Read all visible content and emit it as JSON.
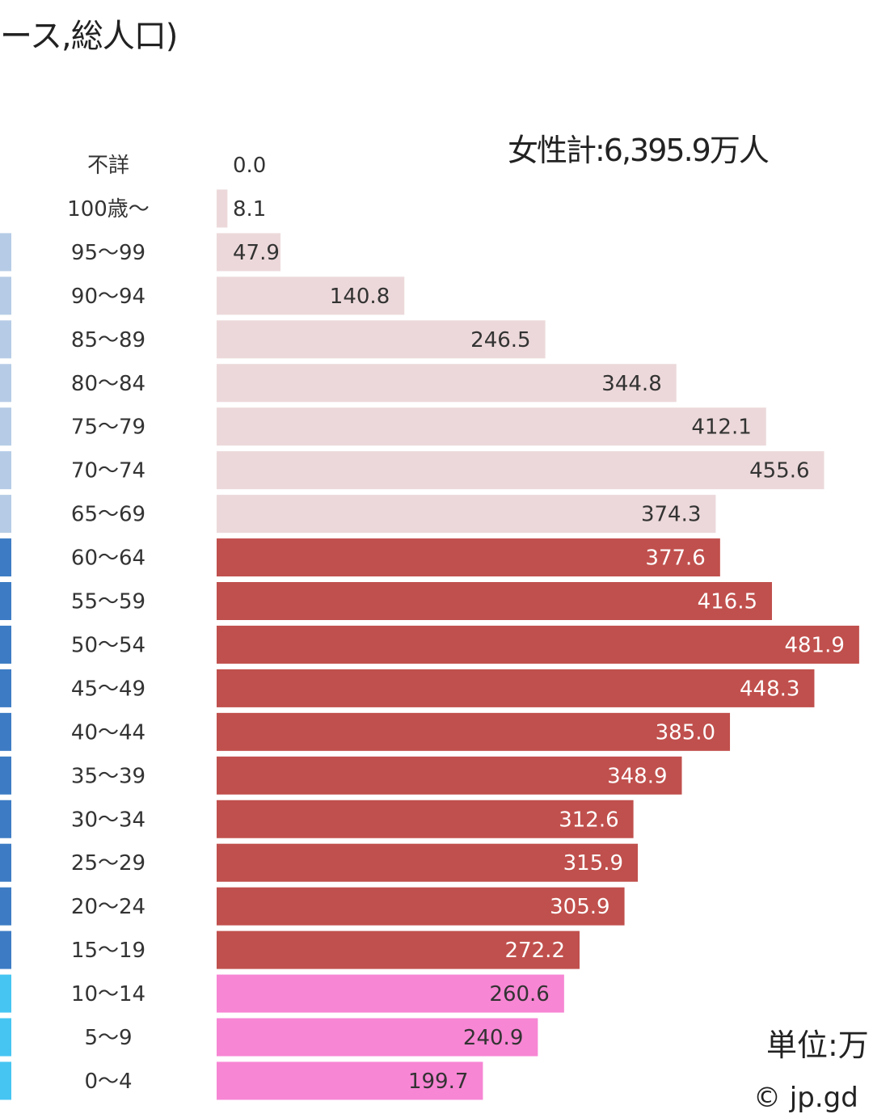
{
  "page": {
    "title_fragment": "ース,総人口)",
    "female_total": "女性計:6,395.9万人",
    "unit_fragment": "単位:万",
    "copyright_fragment": "© jp.gd"
  },
  "colors": {
    "young": "#f786d4",
    "working": "#c0504d",
    "elderly": "#ecd8da",
    "male_young": "#46c5f2",
    "male_working": "#3d7cc4",
    "male_elderly": "#b6cce6"
  },
  "chart_data": {
    "type": "bar",
    "orientation": "horizontal",
    "categories": [
      "不詳",
      "100歳～",
      "95～99",
      "90～94",
      "85～89",
      "80～84",
      "75～79",
      "70～74",
      "65～69",
      "60～64",
      "55～59",
      "50～54",
      "45～49",
      "40～44",
      "35～39",
      "30～34",
      "25～29",
      "20～24",
      "15～19",
      "10～14",
      "5～9",
      "0～4"
    ],
    "value_labels": [
      "0.0",
      "8.1",
      "47.9",
      "140.8",
      "246.5",
      "344.8",
      "412.1",
      "455.6",
      "374.3",
      "377.6",
      "416.5",
      "481.9",
      "448.3",
      "385.0",
      "348.9",
      "312.6",
      "315.9",
      "305.9",
      "272.2",
      "260.6",
      "240.9",
      "199.7"
    ],
    "values": [
      0.0,
      8.1,
      47.9,
      140.8,
      246.5,
      344.8,
      412.1,
      455.6,
      374.3,
      377.6,
      416.5,
      481.9,
      448.3,
      385.0,
      348.9,
      312.6,
      315.9,
      305.9,
      272.2,
      260.6,
      240.9,
      199.7
    ],
    "groups": [
      "elderly",
      "elderly",
      "elderly",
      "elderly",
      "elderly",
      "elderly",
      "elderly",
      "elderly",
      "elderly",
      "working",
      "working",
      "working",
      "working",
      "working",
      "working",
      "working",
      "working",
      "working",
      "working",
      "young",
      "young",
      "young"
    ],
    "xlim": [
      0,
      485
    ],
    "grid": false
  }
}
